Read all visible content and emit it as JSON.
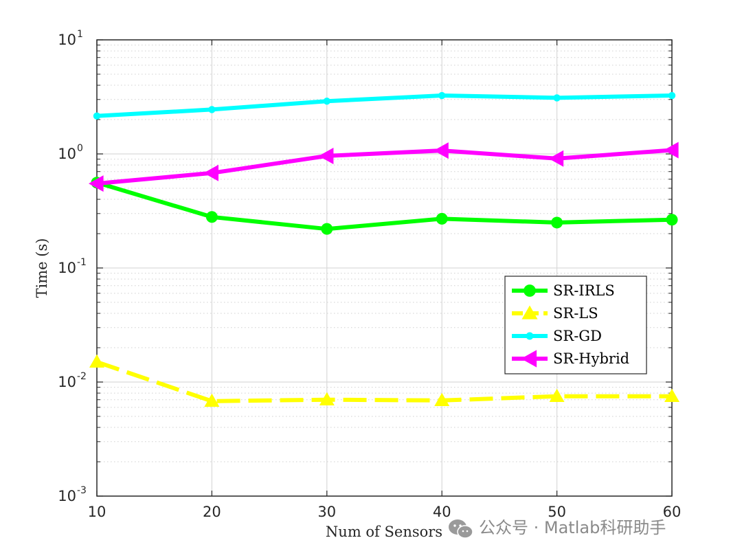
{
  "chart_data": {
    "type": "line",
    "xlabel": "Num of Sensors",
    "ylabel": "Time (s)",
    "x": [
      10,
      20,
      30,
      40,
      50,
      60
    ],
    "xlim": [
      10,
      60
    ],
    "xticks": [
      "10",
      "20",
      "30",
      "40",
      "50",
      "60"
    ],
    "ylim": [
      0.001,
      10
    ],
    "yscale": "log",
    "yticks": [
      {
        "base": "10",
        "exp": "-3"
      },
      {
        "base": "10",
        "exp": "-2"
      },
      {
        "base": "10",
        "exp": "-1"
      },
      {
        "base": "10",
        "exp": "0"
      },
      {
        "base": "10",
        "exp": "1"
      }
    ],
    "grid": true,
    "legend_position": "center-right",
    "series": [
      {
        "name": "SR-IRLS",
        "color": "#00ff00",
        "marker": "circle",
        "dash": "solid",
        "values": [
          0.56,
          0.28,
          0.22,
          0.27,
          0.25,
          0.265
        ]
      },
      {
        "name": "SR-LS",
        "color": "#ffff00",
        "marker": "triangle-up",
        "dash": "dashed",
        "values": [
          0.015,
          0.0068,
          0.007,
          0.0069,
          0.0075,
          0.0075
        ]
      },
      {
        "name": "SR-GD",
        "color": "#00ffff",
        "marker": "dot",
        "dash": "solid",
        "values": [
          2.15,
          2.45,
          2.9,
          3.25,
          3.1,
          3.25
        ]
      },
      {
        "name": "SR-Hybrid",
        "color": "#ff00ff",
        "marker": "triangle-left",
        "dash": "solid",
        "values": [
          0.55,
          0.68,
          0.96,
          1.07,
          0.91,
          1.08
        ]
      }
    ]
  },
  "watermark": {
    "icon": "wechat-icon",
    "text": "公众号 · Matlab科研助手"
  }
}
